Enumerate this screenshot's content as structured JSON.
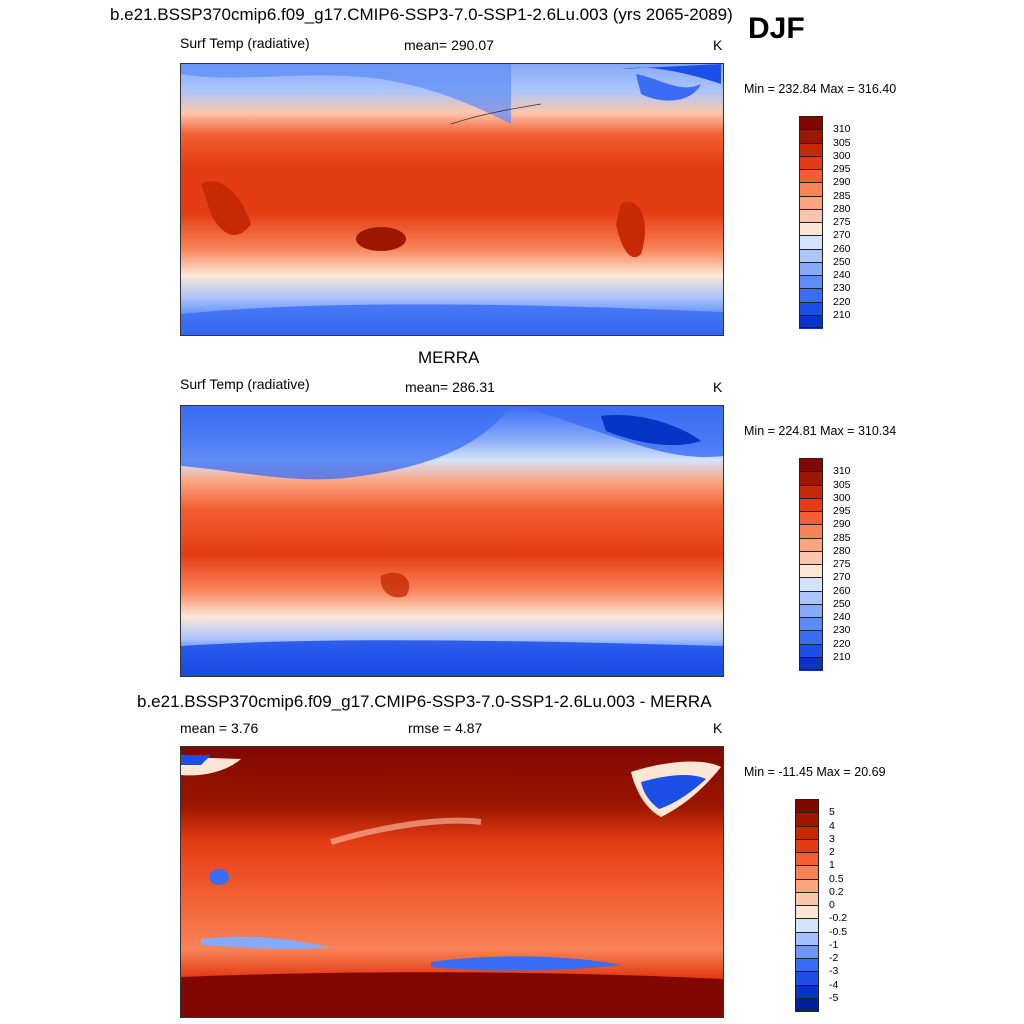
{
  "season": "DJF",
  "colors": {
    "temp_levels": [
      "#000c7e",
      "#0320a3",
      "#0534c7",
      "#1c4fe8",
      "#3a6cf4",
      "#5e8cf7",
      "#86a9f8",
      "#adc6fa",
      "#d3e3fb",
      "#fde6d6",
      "#fdc6ac",
      "#fca480",
      "#f98257",
      "#f25f33",
      "#e43c14",
      "#c62a05",
      "#9c1600",
      "#800800"
    ],
    "diff_levels": [
      "#000c7e",
      "#0320a3",
      "#0534c7",
      "#1c4fe8",
      "#3a6cf4",
      "#6e96f7",
      "#a5bff9",
      "#d3e3fb",
      "#fde6d6",
      "#fdc6ac",
      "#fca480",
      "#f98257",
      "#f25f33",
      "#e43c14",
      "#c62a05",
      "#9c1600",
      "#800800"
    ]
  },
  "panels": [
    {
      "title": "b.e21.BSSP370cmip6.f09_g17.CMIP6-SSP3-7.0-SSP1-2.6Lu.003 (yrs 2065-2089)",
      "left_label": "Surf Temp (radiative)",
      "center_label": "mean= 290.07",
      "units": "K",
      "minmax": "Min = 232.84 Max = 316.40",
      "colorbar_labels": [
        "310",
        "305",
        "300",
        "295",
        "290",
        "285",
        "280",
        "275",
        "270",
        "260",
        "250",
        "240",
        "230",
        "220",
        "210"
      ]
    },
    {
      "title": "MERRA",
      "left_label": "Surf Temp (radiative)",
      "center_label": "mean= 286.31",
      "units": "K",
      "minmax": "Min = 224.81 Max = 310.34",
      "colorbar_labels": [
        "310",
        "305",
        "300",
        "295",
        "290",
        "285",
        "280",
        "275",
        "270",
        "260",
        "250",
        "240",
        "230",
        "220",
        "210"
      ]
    },
    {
      "title": "b.e21.BSSP370cmip6.f09_g17.CMIP6-SSP3-7.0-SSP1-2.6Lu.003 - MERRA",
      "left_label": "mean =   3.76",
      "center_label": "rmse =   4.87",
      "units": "K",
      "minmax": "Min = -11.45 Max =  20.69",
      "colorbar_labels": [
        "5",
        "4",
        "3",
        "2",
        "1",
        "0.5",
        "0.2",
        "0",
        "-0.2",
        "-0.5",
        "-1",
        "-2",
        "-3",
        "-4",
        "-5"
      ]
    }
  ]
}
